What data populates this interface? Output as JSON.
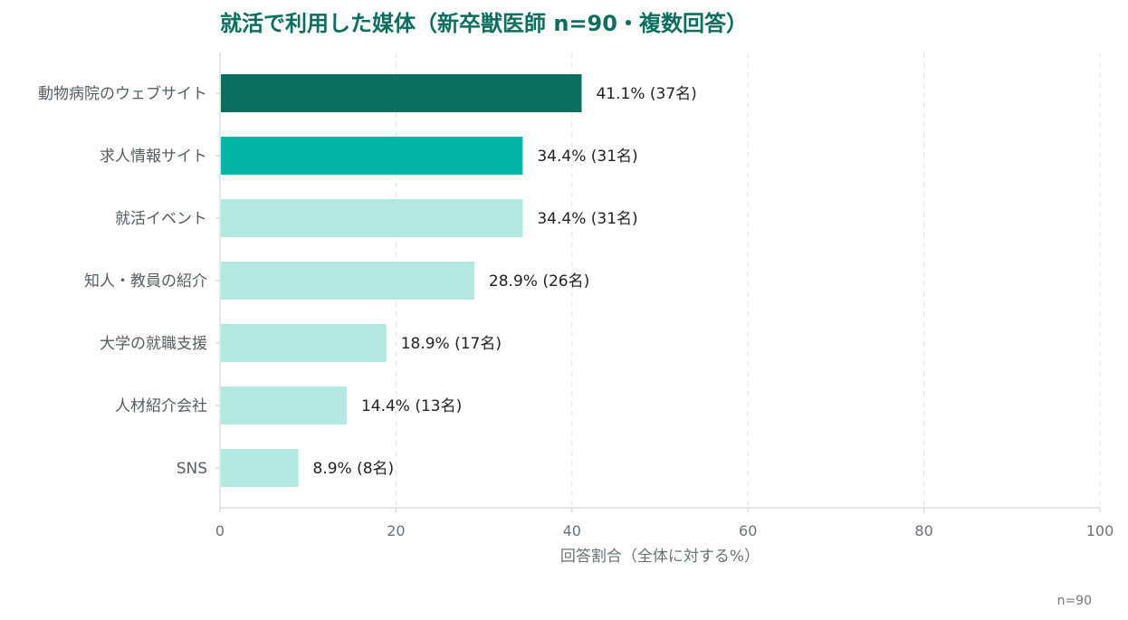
{
  "chart_data": {
    "type": "bar",
    "orientation": "horizontal",
    "title": "就活で利用した媒体（新卒獣医師 n=90・複数回答）",
    "xlabel": "回答割合（全体に対する%）",
    "ylabel": "",
    "xlim": [
      0,
      100
    ],
    "xticks": [
      0,
      20,
      40,
      60,
      80,
      100
    ],
    "grid": "vertical dashed",
    "categories": [
      "動物病院のウェブサイト",
      "求人情報サイト",
      "就活イベント",
      "知人・教員の紹介",
      "大学の就職支援",
      "人材紹介会社",
      "SNS"
    ],
    "values": [
      41.1,
      34.4,
      34.4,
      28.9,
      18.9,
      14.4,
      8.9
    ],
    "counts": [
      37,
      31,
      31,
      26,
      17,
      13,
      8
    ],
    "value_labels": [
      "41.1% (37名)",
      "34.4% (31名)",
      "34.4% (31名)",
      "28.9% (26名)",
      "18.9% (17名)",
      "14.4% (13名)",
      "8.9% (8名)"
    ],
    "bar_colors": [
      "#0b6e5f",
      "#00b5a6",
      "#b3e8e1",
      "#b3e8e1",
      "#b3e8e1",
      "#b3e8e1",
      "#b3e8e1"
    ],
    "note": "n=90"
  },
  "colors": {
    "title": "#0b6e5f",
    "axis": "#cccccc",
    "grid": "#e3e3e3"
  }
}
